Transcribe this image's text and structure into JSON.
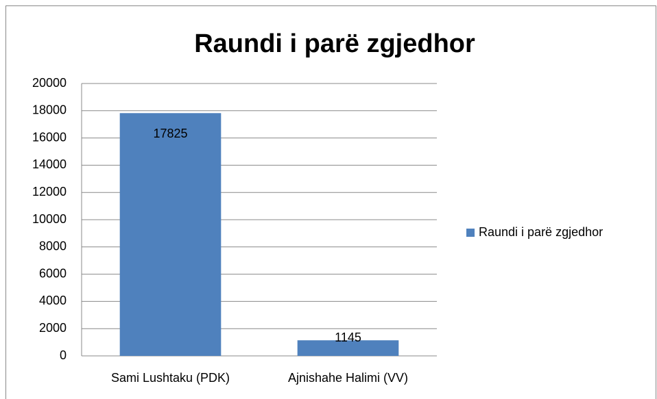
{
  "chart_data": {
    "type": "bar",
    "title": "Raundi i parë zgjedhor",
    "categories": [
      "Sami Lushtaku (PDK)",
      "Ajnishahe Halimi (VV)"
    ],
    "series": [
      {
        "name": "Raundi i parë zgjedhor",
        "color": "#4f81bd",
        "values": [
          17825,
          1145
        ]
      }
    ],
    "ylim": [
      0,
      20000
    ],
    "yticks": [
      0,
      2000,
      4000,
      6000,
      8000,
      10000,
      12000,
      14000,
      16000,
      18000,
      20000
    ],
    "grid": true,
    "legend": "right"
  }
}
